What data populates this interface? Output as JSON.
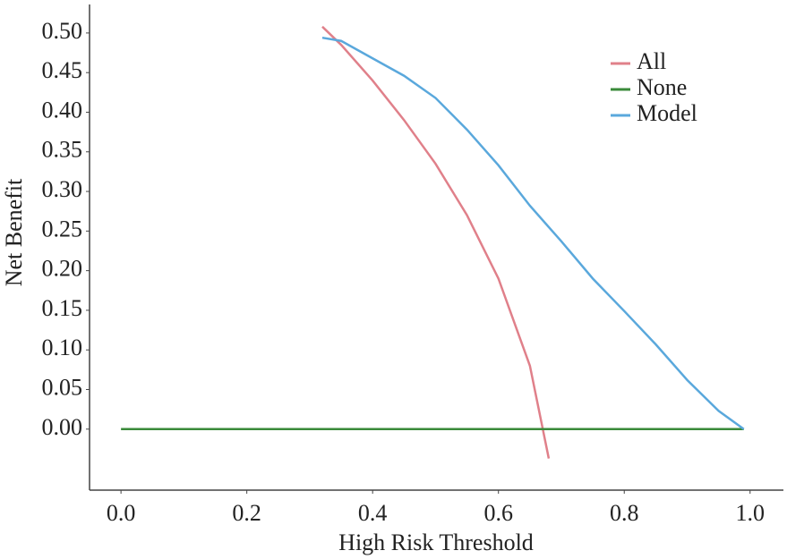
{
  "chart_data": {
    "type": "line",
    "xlabel": "High Risk Threshold",
    "ylabel": "Net Benefit",
    "xlim": [
      -0.05,
      1.053
    ],
    "ylim": [
      -0.077,
      0.536
    ],
    "xticks": [
      {
        "value": 0,
        "label": "0.0"
      },
      {
        "value": 0.2,
        "label": "0.2"
      },
      {
        "value": 0.4,
        "label": "0.4"
      },
      {
        "value": 0.6,
        "label": "0.6"
      },
      {
        "value": 0.8,
        "label": "0.8"
      },
      {
        "value": 1,
        "label": "1.0"
      }
    ],
    "yticks": [
      {
        "value": 0,
        "label": "0.00"
      },
      {
        "value": 0.05,
        "label": "0.05"
      },
      {
        "value": 0.1,
        "label": "0.10"
      },
      {
        "value": 0.15,
        "label": "0.15"
      },
      {
        "value": 0.2,
        "label": "0.20"
      },
      {
        "value": 0.25,
        "label": "0.25"
      },
      {
        "value": 0.3,
        "label": "0.30"
      },
      {
        "value": 0.35,
        "label": "0.35"
      },
      {
        "value": 0.4,
        "label": "0.40"
      },
      {
        "value": 0.45,
        "label": "0.45"
      },
      {
        "value": 0.5,
        "label": "0.50"
      }
    ],
    "grid": false,
    "legend": "top-right",
    "series": [
      {
        "name": "All",
        "color": "#e0808a",
        "x": [
          0.32,
          0.35,
          0.4,
          0.45,
          0.5,
          0.55,
          0.6,
          0.65,
          0.68
        ],
        "values": [
          0.508,
          0.485,
          0.44,
          0.39,
          0.335,
          0.27,
          0.19,
          0.08,
          -0.037
        ]
      },
      {
        "name": "None",
        "color": "#3a8a3a",
        "x": [
          0,
          0.99
        ],
        "values": [
          0,
          0
        ]
      },
      {
        "name": "Model",
        "color": "#5aa8dc",
        "x": [
          0.32,
          0.35,
          0.4,
          0.45,
          0.5,
          0.55,
          0.6,
          0.65,
          0.7,
          0.75,
          0.8,
          0.85,
          0.9,
          0.95,
          0.99
        ],
        "values": [
          0.494,
          0.49,
          0.468,
          0.446,
          0.418,
          0.378,
          0.333,
          0.282,
          0.237,
          0.19,
          0.149,
          0.107,
          0.062,
          0.023,
          0
        ]
      }
    ]
  }
}
